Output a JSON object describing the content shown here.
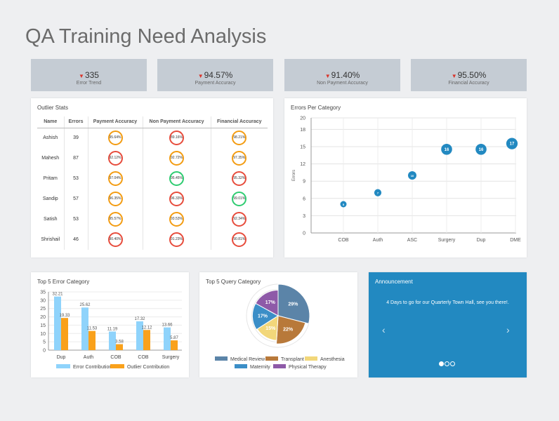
{
  "page_title": "QA Training Need Analysis",
  "kpis": [
    {
      "value": "335",
      "label": "Error Trend"
    },
    {
      "value": "94.57%",
      "label": "Payment Accuracy"
    },
    {
      "value": "91.40%",
      "label": "Non Payment Accuracy"
    },
    {
      "value": "95.50%",
      "label": "Financial Accuracy"
    }
  ],
  "colors": {
    "down_arrow": "#d9342b",
    "ring_red": "#e74c3c",
    "ring_orange": "#f39c12",
    "ring_green": "#2ecc71",
    "bubble": "#2289c1",
    "bar_light": "#8fd3fb",
    "bar_dark": "#f9a11b"
  },
  "outlier": {
    "title": "Outlier Stats",
    "headers": [
      "Name",
      "Errors",
      "Payment Accuracy",
      "Non Payment Accuracy",
      "Financial Accuracy"
    ],
    "rows": [
      {
        "name": "Ashish",
        "errors": "39",
        "pa": "95.64%",
        "pa_c": "orange",
        "npa": "89.16%",
        "npa_c": "red",
        "fa": "98.21%",
        "fa_c": "orange"
      },
      {
        "name": "Mahesh",
        "errors": "87",
        "pa": "92.12%",
        "pa_c": "red",
        "npa": "92.72%",
        "npa_c": "orange",
        "fa": "97.35%",
        "fa_c": "orange"
      },
      {
        "name": "Pritam",
        "errors": "53",
        "pa": "97.04%",
        "pa_c": "orange",
        "npa": "95.45%",
        "npa_c": "green",
        "fa": "95.32%",
        "fa_c": "red"
      },
      {
        "name": "Sandip",
        "errors": "57",
        "pa": "96.35%",
        "pa_c": "orange",
        "npa": "96.33%",
        "npa_c": "red",
        "fa": "99.01%",
        "fa_c": "green"
      },
      {
        "name": "Satish",
        "errors": "53",
        "pa": "95.57%",
        "pa_c": "orange",
        "npa": "93.53%",
        "npa_c": "orange",
        "fa": "92.34%",
        "fa_c": "red"
      },
      {
        "name": "Shrishail",
        "errors": "46",
        "pa": "90.40%",
        "pa_c": "red",
        "npa": "91.23%",
        "npa_c": "red",
        "fa": "90.81%",
        "fa_c": "red"
      }
    ]
  },
  "errors_per_category": {
    "title": "Errors Per Category",
    "chart_data": {
      "type": "scatter",
      "categories": [
        "COB",
        "Auth",
        "ASC",
        "Surgery",
        "Dup",
        "DME"
      ],
      "values": [
        5,
        7,
        10,
        16,
        16,
        17
      ],
      "ylabel": "Errors",
      "ylim": [
        0,
        20
      ],
      "yticks": [
        0,
        3,
        6,
        9,
        12,
        15,
        18,
        20
      ]
    }
  },
  "top5_error": {
    "title": "Top 5 Error Category",
    "chart_data": {
      "type": "bar",
      "categories": [
        "Dup",
        "Auth",
        "COB",
        "COB",
        "Surgery"
      ],
      "series": [
        {
          "name": "Error Contribution",
          "values": [
            32.21,
            25.62,
            11.19,
            17.32,
            13.66
          ]
        },
        {
          "name": "Outlier Contribution",
          "values": [
            19.33,
            11.53,
            3.58,
            12.12,
            5.87
          ]
        }
      ],
      "ylim": [
        0,
        35
      ],
      "yticks": [
        0,
        5,
        10,
        15,
        20,
        25,
        30,
        35
      ]
    }
  },
  "top5_query": {
    "title": "Top 5 Query Category",
    "chart_data": {
      "type": "pie",
      "slices": [
        {
          "name": "Medical Review",
          "value": 29,
          "label": "29%",
          "color": "#5b84a8"
        },
        {
          "name": "Transplant",
          "value": 22,
          "label": "22%",
          "color": "#b8793a"
        },
        {
          "name": "Anesthesia",
          "value": 15,
          "label": "15%",
          "color": "#f2d77a"
        },
        {
          "name": "Maternity",
          "value": 17,
          "label": "17%",
          "color": "#3b8ec7"
        },
        {
          "name": "Physical Therapy",
          "value": 17,
          "label": "17%",
          "color": "#8e5aa8"
        }
      ]
    }
  },
  "announcement": {
    "title": "Announcement",
    "message": "4 Days to go for our Quarterly Town Hall, see you there!.",
    "prev": "‹",
    "next": "›"
  }
}
